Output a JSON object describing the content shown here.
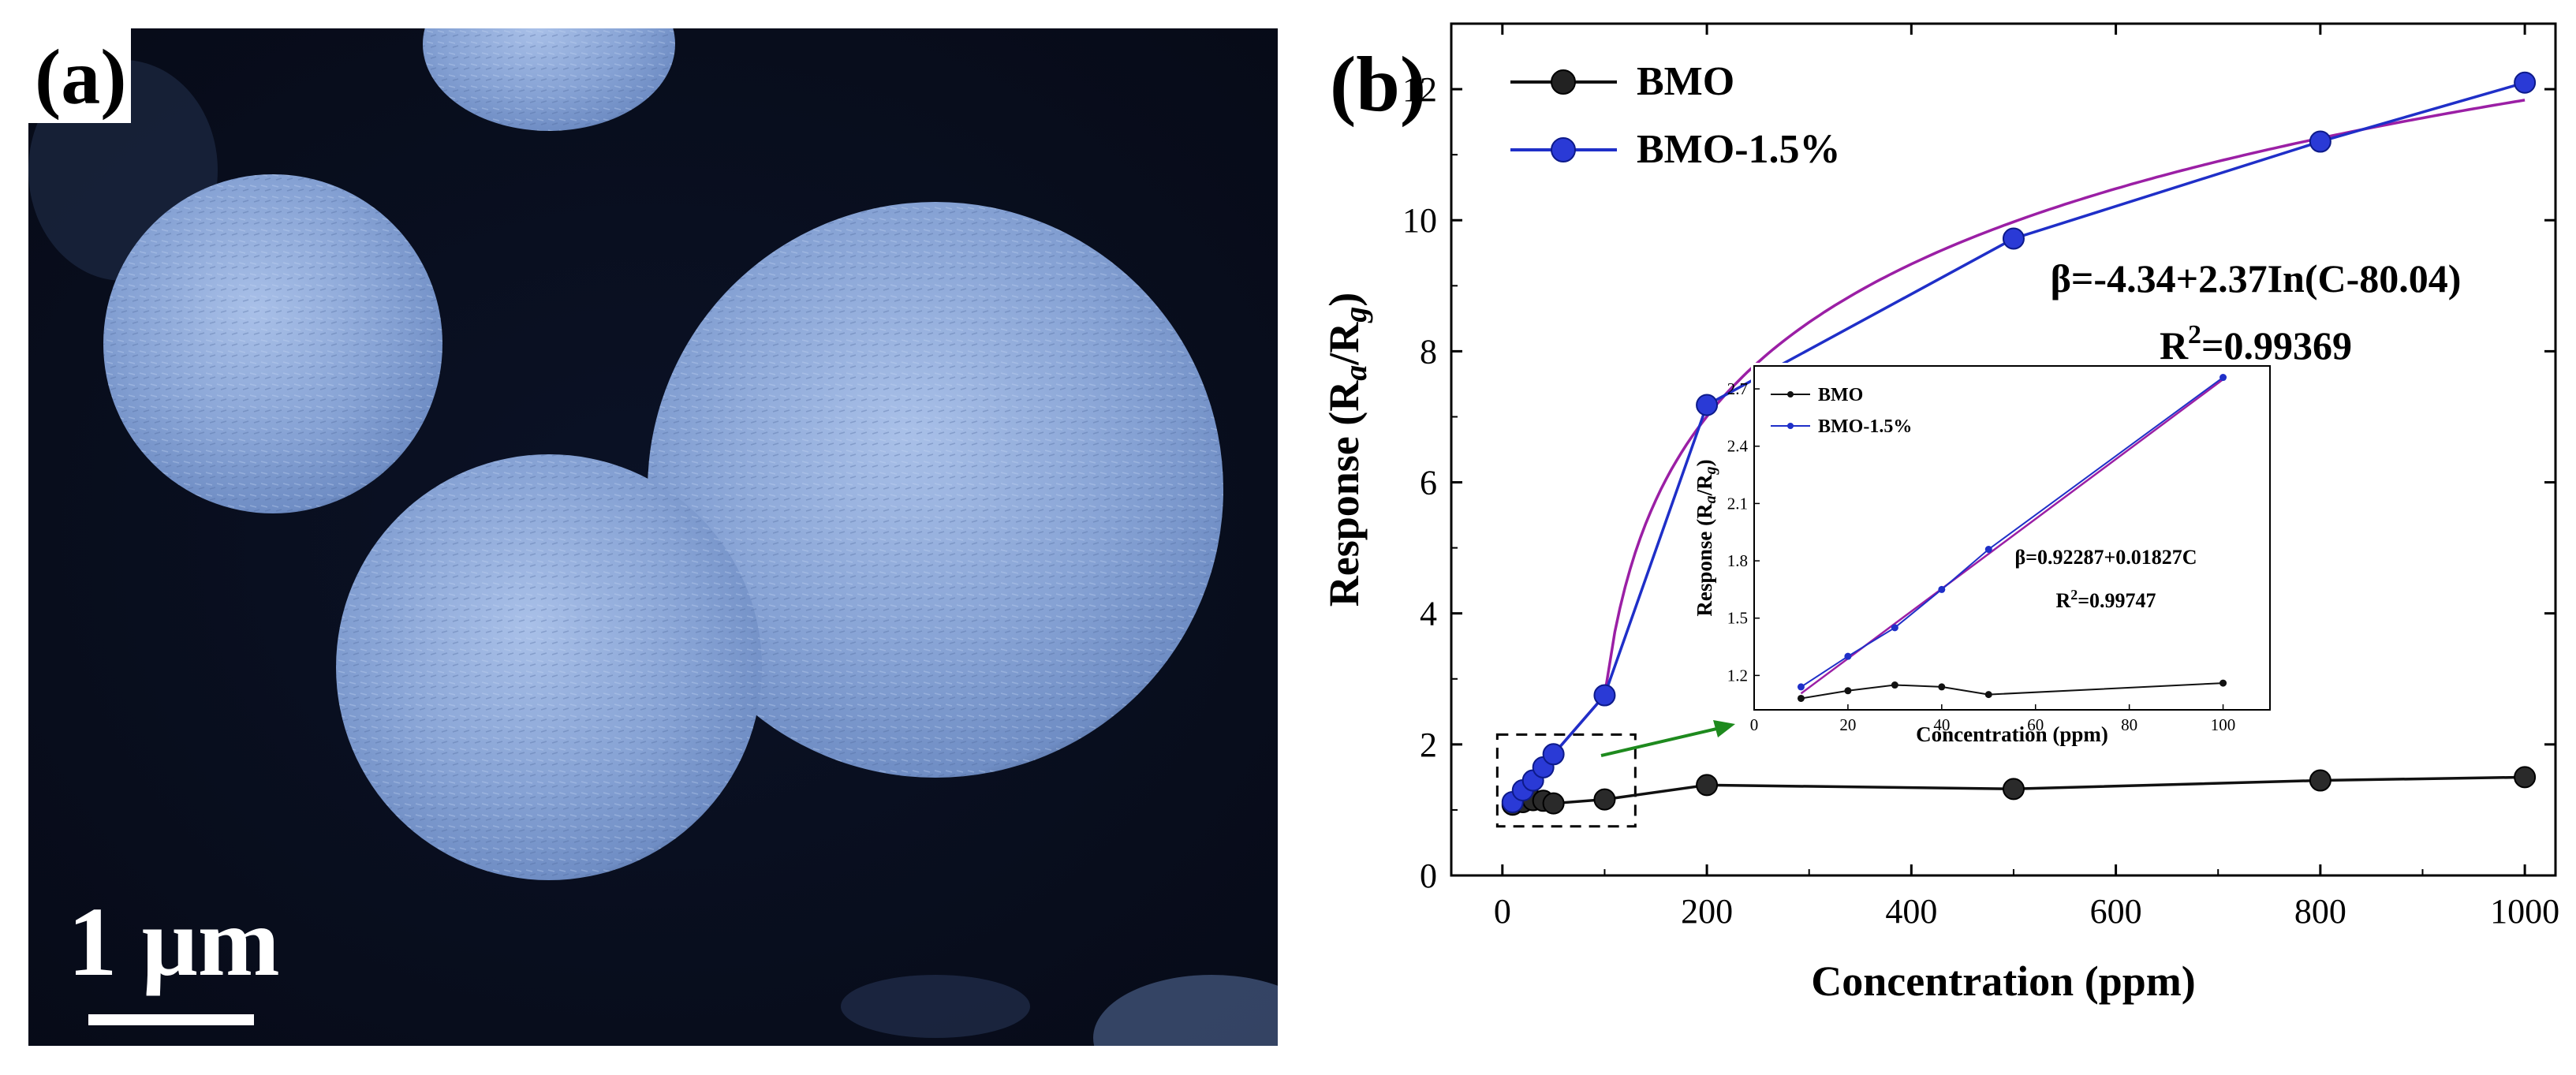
{
  "panel_a": {
    "label": "(a)",
    "scale_bar_label": "1 μm",
    "image_description_icon": "sem-micrograph-microspheres"
  },
  "chart_data": [
    {
      "type": "line",
      "panel_label": "(b)",
      "title": "",
      "xlabel": "Concentration (ppm)",
      "ylabel_parts": {
        "base": "Response (R",
        "sub_a": "a",
        "mid": "/R",
        "sub_g": "g",
        "end": ")"
      },
      "xlim": [
        -50,
        1030
      ],
      "ylim": [
        0,
        13
      ],
      "xticks": [
        0,
        200,
        400,
        600,
        800,
        1000
      ],
      "yticks": [
        0,
        2,
        4,
        6,
        8,
        10,
        12
      ],
      "grid": false,
      "legend_position": "top-left",
      "series": [
        {
          "name": "BMO",
          "color": "#111111",
          "x": [
            10,
            20,
            30,
            40,
            50,
            100,
            200,
            500,
            800,
            1000
          ],
          "y": [
            1.08,
            1.12,
            1.15,
            1.14,
            1.1,
            1.16,
            1.38,
            1.32,
            1.45,
            1.5
          ]
        },
        {
          "name": "BMO-1.5%",
          "color": "#1f2fc8",
          "x": [
            10,
            20,
            30,
            40,
            50,
            100,
            200,
            500,
            800,
            1000
          ],
          "y": [
            1.12,
            1.3,
            1.45,
            1.65,
            1.85,
            2.75,
            7.18,
            9.72,
            11.2,
            12.1
          ]
        }
      ],
      "fit_curve": {
        "color": "#9b1fa5",
        "a": -4.34,
        "b": 2.37,
        "c": 80.04,
        "x_start": 10,
        "x_end": 1000,
        "low_x": [
          10,
          50,
          100
        ],
        "low_y": [
          1.1,
          1.85,
          2.75
        ]
      },
      "fit_equation": "β=-4.34+2.37In(C-80.04)",
      "r_squared_base": "R",
      "r_squared_sup": "2",
      "r_squared_value": "=0.99369",
      "zoom_box": {
        "x": [
          -5,
          130
        ],
        "y": [
          0.75,
          2.15
        ]
      }
    },
    {
      "type": "line",
      "role": "inset",
      "title": "",
      "xlabel": "Concentration (ppm)",
      "ylabel_parts": {
        "base": "Response (R",
        "sub_a": "a",
        "mid": "/R",
        "sub_g": "g",
        "end": ")"
      },
      "xlim": [
        0,
        110
      ],
      "ylim": [
        1.02,
        2.82
      ],
      "xticks": [
        0,
        20,
        40,
        60,
        80,
        100
      ],
      "yticks": [
        1.2,
        1.5,
        1.8,
        2.1,
        2.4,
        2.7
      ],
      "ytick_labels": [
        "1.2",
        "1.5",
        "1.8",
        "2.1",
        "2.4",
        "2.7"
      ],
      "legend_position": "top-left",
      "series": [
        {
          "name": "BMO",
          "color": "#111111",
          "x": [
            10,
            20,
            30,
            40,
            50,
            100
          ],
          "y": [
            1.08,
            1.12,
            1.15,
            1.14,
            1.1,
            1.16
          ]
        },
        {
          "name": "BMO-1.5%",
          "color": "#1f2fc8",
          "x": [
            10,
            20,
            30,
            40,
            50,
            100
          ],
          "y": [
            1.14,
            1.3,
            1.45,
            1.65,
            1.86,
            2.76
          ]
        }
      ],
      "fit_line": {
        "color": "#9b1fa5",
        "intercept": 0.92287,
        "slope": 0.01827,
        "x_start": 10,
        "x_end": 100
      },
      "fit_equation": "β=0.92287+0.01827C",
      "r_squared_base": "R",
      "r_squared_sup": "2",
      "r_squared_value": "=0.99747"
    }
  ]
}
